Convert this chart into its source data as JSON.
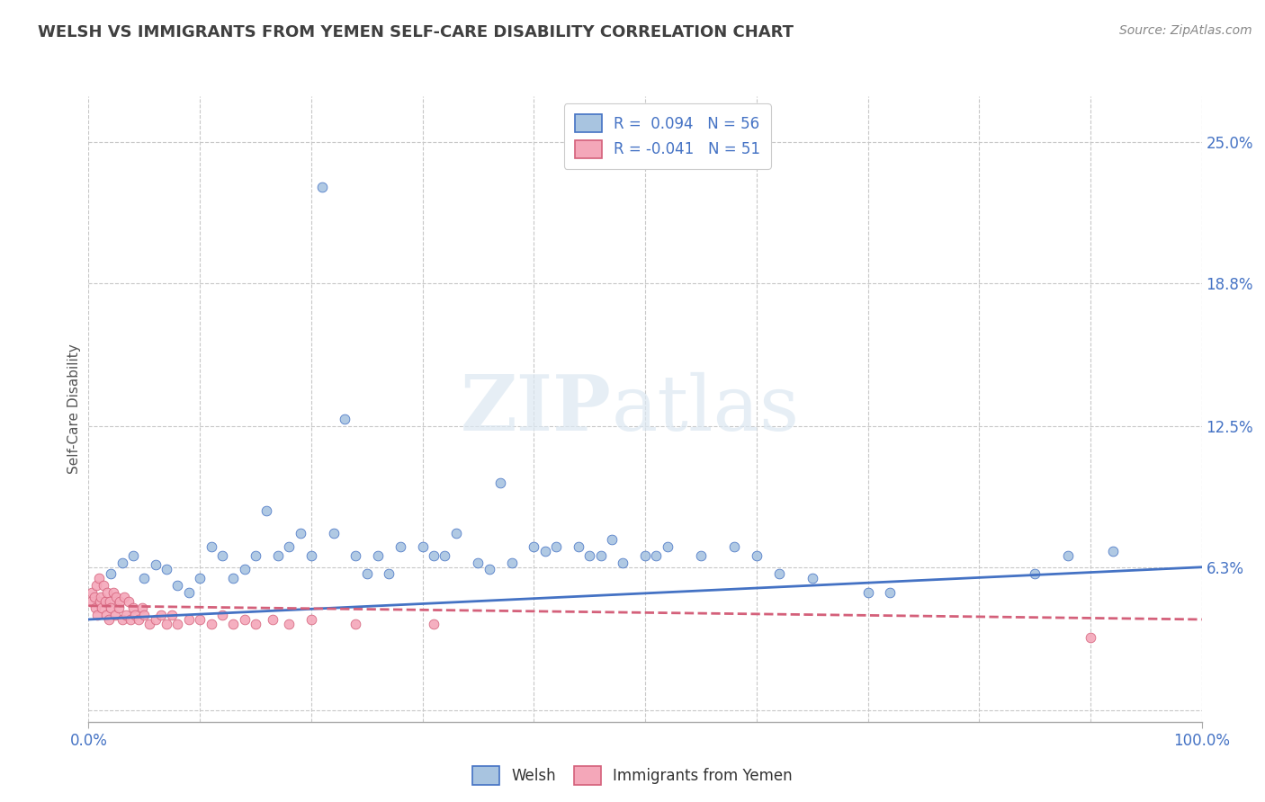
{
  "title": "WELSH VS IMMIGRANTS FROM YEMEN SELF-CARE DISABILITY CORRELATION CHART",
  "source": "Source: ZipAtlas.com",
  "ylabel": "Self-Care Disability",
  "xlim": [
    0.0,
    1.0
  ],
  "ylim": [
    -0.005,
    0.27
  ],
  "yticks": [
    0.0,
    0.063,
    0.125,
    0.188,
    0.25
  ],
  "welsh_color": "#a8c4e0",
  "yemen_color": "#f4a7b9",
  "welsh_line_color": "#4472c4",
  "yemen_line_color": "#d4607a",
  "background_color": "#ffffff",
  "grid_color": "#c8c8c8",
  "title_color": "#404040",
  "watermark_zip": "ZIP",
  "watermark_atlas": "atlas",
  "welsh_scatter_x": [
    0.02,
    0.03,
    0.04,
    0.05,
    0.06,
    0.07,
    0.08,
    0.09,
    0.1,
    0.11,
    0.12,
    0.13,
    0.14,
    0.15,
    0.16,
    0.17,
    0.18,
    0.19,
    0.2,
    0.21,
    0.22,
    0.23,
    0.24,
    0.25,
    0.26,
    0.27,
    0.28,
    0.3,
    0.31,
    0.32,
    0.33,
    0.35,
    0.36,
    0.37,
    0.38,
    0.4,
    0.41,
    0.42,
    0.44,
    0.45,
    0.46,
    0.47,
    0.48,
    0.5,
    0.51,
    0.52,
    0.55,
    0.58,
    0.6,
    0.62,
    0.65,
    0.7,
    0.72,
    0.85,
    0.88,
    0.92
  ],
  "welsh_scatter_y": [
    0.06,
    0.065,
    0.068,
    0.058,
    0.064,
    0.062,
    0.055,
    0.052,
    0.058,
    0.072,
    0.068,
    0.058,
    0.062,
    0.068,
    0.088,
    0.068,
    0.072,
    0.078,
    0.068,
    0.23,
    0.078,
    0.128,
    0.068,
    0.06,
    0.068,
    0.06,
    0.072,
    0.072,
    0.068,
    0.068,
    0.078,
    0.065,
    0.062,
    0.1,
    0.065,
    0.072,
    0.07,
    0.072,
    0.072,
    0.068,
    0.068,
    0.075,
    0.065,
    0.068,
    0.068,
    0.072,
    0.068,
    0.072,
    0.068,
    0.06,
    0.058,
    0.052,
    0.052,
    0.06,
    0.068,
    0.07
  ],
  "yemen_scatter_x": [
    0.002,
    0.003,
    0.005,
    0.006,
    0.007,
    0.008,
    0.009,
    0.01,
    0.011,
    0.012,
    0.013,
    0.015,
    0.016,
    0.017,
    0.018,
    0.019,
    0.02,
    0.022,
    0.024,
    0.025,
    0.027,
    0.028,
    0.03,
    0.032,
    0.034,
    0.036,
    0.038,
    0.04,
    0.042,
    0.045,
    0.048,
    0.05,
    0.055,
    0.06,
    0.065,
    0.07,
    0.075,
    0.08,
    0.09,
    0.1,
    0.11,
    0.12,
    0.13,
    0.14,
    0.15,
    0.165,
    0.18,
    0.2,
    0.24,
    0.31,
    0.9
  ],
  "yemen_scatter_y": [
    0.048,
    0.052,
    0.05,
    0.045,
    0.055,
    0.042,
    0.058,
    0.048,
    0.05,
    0.045,
    0.055,
    0.048,
    0.042,
    0.052,
    0.04,
    0.048,
    0.045,
    0.052,
    0.042,
    0.05,
    0.045,
    0.048,
    0.04,
    0.05,
    0.042,
    0.048,
    0.04,
    0.045,
    0.042,
    0.04,
    0.045,
    0.042,
    0.038,
    0.04,
    0.042,
    0.038,
    0.042,
    0.038,
    0.04,
    0.04,
    0.038,
    0.042,
    0.038,
    0.04,
    0.038,
    0.04,
    0.038,
    0.04,
    0.038,
    0.038,
    0.032
  ],
  "welsh_line_x": [
    0.0,
    1.0
  ],
  "welsh_line_y": [
    0.04,
    0.063
  ],
  "yemen_line_x": [
    0.0,
    1.0
  ],
  "yemen_line_y": [
    0.046,
    0.04
  ]
}
